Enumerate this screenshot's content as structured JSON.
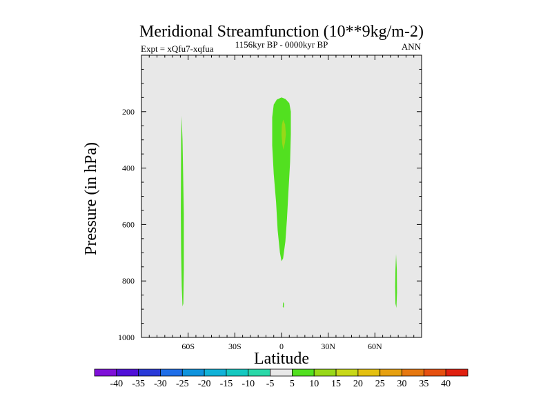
{
  "chart_data": {
    "type": "contour",
    "title": "Meridional Streamfunction (10**9kg/m-2)",
    "experiment_label": "Expt = xQfu7-xqfua",
    "subtitle": "1156kyr BP - 0000kyr BP",
    "season": "ANN",
    "xlabel": "Latitude",
    "ylabel": "Pressure (in hPa)",
    "xlim": [
      -90,
      90
    ],
    "ylim": [
      0,
      1000
    ],
    "y_inverted": true,
    "x_ticks": [
      {
        "value": -60,
        "label": "60S"
      },
      {
        "value": -30,
        "label": "30S"
      },
      {
        "value": 0,
        "label": "0"
      },
      {
        "value": 30,
        "label": "30N"
      },
      {
        "value": 60,
        "label": "60N"
      }
    ],
    "y_ticks": [
      {
        "value": 200,
        "label": "200"
      },
      {
        "value": 400,
        "label": "400"
      },
      {
        "value": 600,
        "label": "600"
      },
      {
        "value": 800,
        "label": "800"
      },
      {
        "value": 1000,
        "label": "1000"
      }
    ],
    "background_value_range": [
      -5,
      5
    ],
    "regions": [
      {
        "name": "equatorial-cell-5-10",
        "level": "5 to 10",
        "polygon": [
          [
            0,
            150
          ],
          [
            2.5,
            155
          ],
          [
            5,
            170
          ],
          [
            6,
            200
          ],
          [
            6,
            280
          ],
          [
            5.5,
            380
          ],
          [
            4.5,
            480
          ],
          [
            3.5,
            580
          ],
          [
            2.5,
            660
          ],
          [
            1,
            720
          ],
          [
            0,
            730
          ],
          [
            -1,
            700
          ],
          [
            -2.5,
            620
          ],
          [
            -3.5,
            520
          ],
          [
            -5,
            420
          ],
          [
            -6,
            320
          ],
          [
            -6,
            220
          ],
          [
            -5,
            175
          ],
          [
            -3,
            157
          ]
        ]
      },
      {
        "name": "equatorial-core-10-15",
        "level": "10 to 15",
        "polygon": [
          [
            1,
            228
          ],
          [
            2.3,
            245
          ],
          [
            2.8,
            280
          ],
          [
            2.2,
            310
          ],
          [
            1.2,
            335
          ],
          [
            0.5,
            315
          ],
          [
            0,
            282
          ],
          [
            0.2,
            248
          ]
        ]
      },
      {
        "name": "southern-band-5-10",
        "level": "5 to 10",
        "polygon": [
          [
            -64.2,
            215
          ],
          [
            -63.6,
            300
          ],
          [
            -63.2,
            420
          ],
          [
            -62.8,
            560
          ],
          [
            -62.8,
            760
          ],
          [
            -63.1,
            880
          ],
          [
            -63.6,
            890
          ],
          [
            -64.1,
            820
          ],
          [
            -64.5,
            700
          ],
          [
            -64.7,
            560
          ],
          [
            -64.6,
            420
          ],
          [
            -64.5,
            300
          ]
        ]
      },
      {
        "name": "northern-band-5-10",
        "level": "5 to 10",
        "polygon": [
          [
            73.6,
            705
          ],
          [
            74.1,
            760
          ],
          [
            74.2,
            840
          ],
          [
            73.8,
            895
          ],
          [
            73.2,
            880
          ],
          [
            73,
            820
          ],
          [
            73.2,
            760
          ]
        ]
      },
      {
        "name": "equatorial-speck-5-10",
        "level": "5 to 10",
        "polygon": [
          [
            1,
            875
          ],
          [
            1.6,
            880
          ],
          [
            1.4,
            895
          ],
          [
            0.8,
            892
          ]
        ]
      }
    ],
    "colorbar": {
      "labels": [
        "-40",
        "-35",
        "-30",
        "-25",
        "-20",
        "-15",
        "-10",
        "-5",
        "5",
        "10",
        "15",
        "20",
        "25",
        "30",
        "35",
        "40"
      ],
      "colors": [
        "#7f10d8",
        "#5010d8",
        "#2a3ad8",
        "#1f6ee8",
        "#0f93dd",
        "#10b2d8",
        "#14c8c0",
        "#2ad8a8",
        "#e8e8e8",
        "#52e020",
        "#98d818",
        "#c8d818",
        "#e4c010",
        "#e6a010",
        "#e67810",
        "#e65010",
        "#e02010"
      ]
    }
  }
}
